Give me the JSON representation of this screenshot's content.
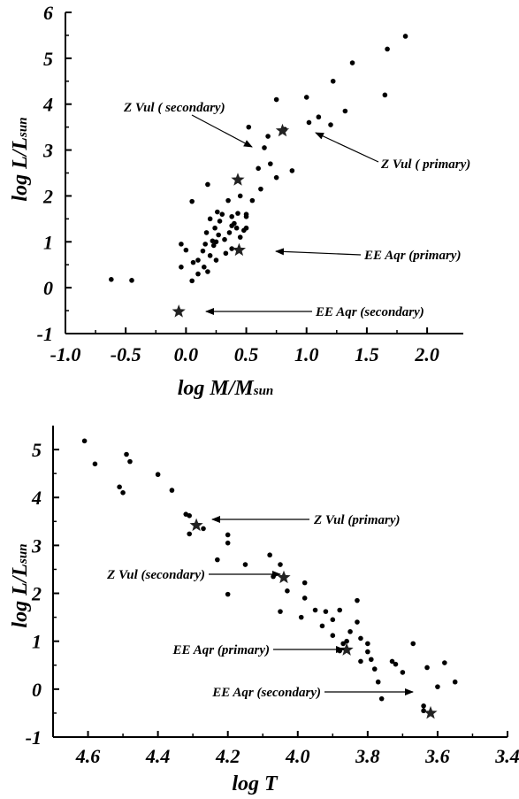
{
  "chart_data": [
    {
      "type": "scatter",
      "ylabel": {
        "main": "log L/L",
        "sub": "sun"
      },
      "xlabel": {
        "main": "log M/M",
        "sub": "sun"
      },
      "xlim": [
        -1.0,
        2.3
      ],
      "ylim": [
        -1,
        6
      ],
      "x_ticks": [
        -1.0,
        -0.5,
        0.0,
        0.5,
        1.0,
        1.5,
        2.0
      ],
      "x_tick_labels": [
        "-1.0",
        "-0.5",
        "0.0",
        "0.5",
        "1.0",
        "1.5",
        "2.0"
      ],
      "y_ticks": [
        -1,
        0,
        1,
        2,
        3,
        4,
        5,
        6
      ],
      "y_tick_labels": [
        "-1",
        "0",
        "1",
        "2",
        "3",
        "4",
        "5",
        "6"
      ],
      "series": [
        {
          "marker": "dot",
          "points": [
            [
              -0.62,
              0.18
            ],
            [
              -0.45,
              0.16
            ],
            [
              -0.04,
              0.95
            ],
            [
              -0.04,
              0.45
            ],
            [
              0.0,
              0.82
            ],
            [
              0.05,
              1.88
            ],
            [
              0.05,
              0.15
            ],
            [
              0.06,
              0.55
            ],
            [
              0.1,
              0.3
            ],
            [
              0.1,
              0.6
            ],
            [
              0.14,
              0.8
            ],
            [
              0.15,
              0.45
            ],
            [
              0.16,
              0.95
            ],
            [
              0.17,
              1.2
            ],
            [
              0.18,
              2.25
            ],
            [
              0.18,
              0.35
            ],
            [
              0.2,
              0.7
            ],
            [
              0.2,
              1.5
            ],
            [
              0.22,
              1.02
            ],
            [
              0.23,
              0.92
            ],
            [
              0.24,
              1.3
            ],
            [
              0.25,
              1.0
            ],
            [
              0.25,
              0.6
            ],
            [
              0.26,
              1.65
            ],
            [
              0.27,
              1.15
            ],
            [
              0.28,
              1.45
            ],
            [
              0.3,
              1.6
            ],
            [
              0.32,
              1.05
            ],
            [
              0.33,
              0.75
            ],
            [
              0.35,
              1.9
            ],
            [
              0.36,
              1.2
            ],
            [
              0.38,
              1.55
            ],
            [
              0.38,
              1.35
            ],
            [
              0.38,
              0.85
            ],
            [
              0.4,
              1.4
            ],
            [
              0.42,
              1.3
            ],
            [
              0.43,
              1.62
            ],
            [
              0.45,
              2.0
            ],
            [
              0.45,
              1.1
            ],
            [
              0.48,
              1.25
            ],
            [
              0.5,
              1.55
            ],
            [
              0.5,
              1.6
            ],
            [
              0.5,
              1.3
            ],
            [
              0.52,
              3.5
            ],
            [
              0.55,
              1.9
            ],
            [
              0.6,
              2.6
            ],
            [
              0.62,
              2.15
            ],
            [
              0.65,
              3.05
            ],
            [
              0.68,
              3.3
            ],
            [
              0.7,
              2.7
            ],
            [
              0.75,
              4.1
            ],
            [
              0.75,
              2.4
            ],
            [
              0.82,
              3.45
            ],
            [
              0.88,
              2.55
            ],
            [
              1.0,
              4.15
            ],
            [
              1.02,
              3.6
            ],
            [
              1.1,
              3.72
            ],
            [
              1.2,
              3.55
            ],
            [
              1.22,
              4.5
            ],
            [
              1.32,
              3.85
            ],
            [
              1.38,
              4.9
            ],
            [
              1.65,
              4.2
            ],
            [
              1.67,
              5.2
            ],
            [
              1.82,
              5.48
            ]
          ]
        },
        {
          "marker": "star",
          "points": [
            [
              0.43,
              2.35
            ],
            [
              0.8,
              3.42
            ],
            [
              0.44,
              0.82
            ],
            [
              -0.06,
              -0.52
            ]
          ]
        }
      ],
      "annotations": [
        {
          "text": "Z Vul ( secondary)",
          "target": [
            0.43,
            2.35
          ]
        },
        {
          "text": "Z Vul ( primary)",
          "target": [
            0.8,
            3.42
          ]
        },
        {
          "text": "EE Aqr (primary)",
          "target": [
            0.44,
            0.82
          ]
        },
        {
          "text": "EE Aqr (secondary)",
          "target": [
            -0.06,
            -0.52
          ]
        }
      ]
    },
    {
      "type": "scatter",
      "ylabel": {
        "main": "log L/L",
        "sub": "sun"
      },
      "xlabel": {
        "main": "log T",
        "sub": ""
      },
      "xlim": [
        4.7,
        3.4
      ],
      "ylim": [
        -1,
        5.5
      ],
      "x_ticks": [
        4.6,
        4.4,
        4.2,
        4.0,
        3.8,
        3.6,
        3.4
      ],
      "x_tick_labels": [
        "4.6",
        "4.4",
        "4.2",
        "4.0",
        "3.8",
        "3.6",
        "3.4"
      ],
      "y_ticks": [
        -1,
        0,
        1,
        2,
        3,
        4,
        5
      ],
      "y_tick_labels": [
        "-1",
        "0",
        "1",
        "2",
        "3",
        "4",
        "5"
      ],
      "series": [
        {
          "marker": "dot",
          "points": [
            [
              4.61,
              5.18
            ],
            [
              4.58,
              4.7
            ],
            [
              4.49,
              4.9
            ],
            [
              4.48,
              4.75
            ],
            [
              4.51,
              4.22
            ],
            [
              4.5,
              4.1
            ],
            [
              4.4,
              4.48
            ],
            [
              4.36,
              4.15
            ],
            [
              4.32,
              3.65
            ],
            [
              4.31,
              3.62
            ],
            [
              4.31,
              3.24
            ],
            [
              4.27,
              3.35
            ],
            [
              4.2,
              3.22
            ],
            [
              4.2,
              3.05
            ],
            [
              4.15,
              2.6
            ],
            [
              4.23,
              2.7
            ],
            [
              4.2,
              1.98
            ],
            [
              4.08,
              2.8
            ],
            [
              4.05,
              2.6
            ],
            [
              4.07,
              2.35
            ],
            [
              4.05,
              1.62
            ],
            [
              4.03,
              2.05
            ],
            [
              3.98,
              2.22
            ],
            [
              3.99,
              1.5
            ],
            [
              3.98,
              1.9
            ],
            [
              3.95,
              1.65
            ],
            [
              3.92,
              1.62
            ],
            [
              3.9,
              1.45
            ],
            [
              3.88,
              1.65
            ],
            [
              3.83,
              1.85
            ],
            [
              3.93,
              1.32
            ],
            [
              3.9,
              1.12
            ],
            [
              3.85,
              1.2
            ],
            [
              3.83,
              1.4
            ],
            [
              3.82,
              1.06
            ],
            [
              3.8,
              0.95
            ],
            [
              3.8,
              0.78
            ],
            [
              3.79,
              0.62
            ],
            [
              3.86,
              1.0
            ],
            [
              3.87,
              0.95
            ],
            [
              3.88,
              0.8
            ],
            [
              3.82,
              0.58
            ],
            [
              3.78,
              0.42
            ],
            [
              3.77,
              0.15
            ],
            [
              3.76,
              -0.2
            ],
            [
              3.73,
              0.58
            ],
            [
              3.72,
              0.52
            ],
            [
              3.7,
              0.35
            ],
            [
              3.67,
              0.95
            ],
            [
              3.63,
              0.45
            ],
            [
              3.64,
              -0.35
            ],
            [
              3.64,
              -0.45
            ],
            [
              3.6,
              0.05
            ],
            [
              3.58,
              0.55
            ],
            [
              3.55,
              0.15
            ]
          ]
        },
        {
          "marker": "star",
          "points": [
            [
              4.29,
              3.42
            ],
            [
              4.04,
              2.33
            ],
            [
              3.86,
              0.82
            ],
            [
              3.62,
              -0.5
            ]
          ]
        }
      ],
      "annotations": [
        {
          "text": "Z Vul (primary)",
          "target": [
            4.29,
            3.42
          ]
        },
        {
          "text": "Z Vul (secondary)",
          "target": [
            4.04,
            2.33
          ]
        },
        {
          "text": "EE Aqr (primary)",
          "target": [
            3.86,
            0.82
          ]
        },
        {
          "text": "EE Aqr (secondary)",
          "target": [
            3.62,
            -0.5
          ]
        }
      ]
    }
  ]
}
